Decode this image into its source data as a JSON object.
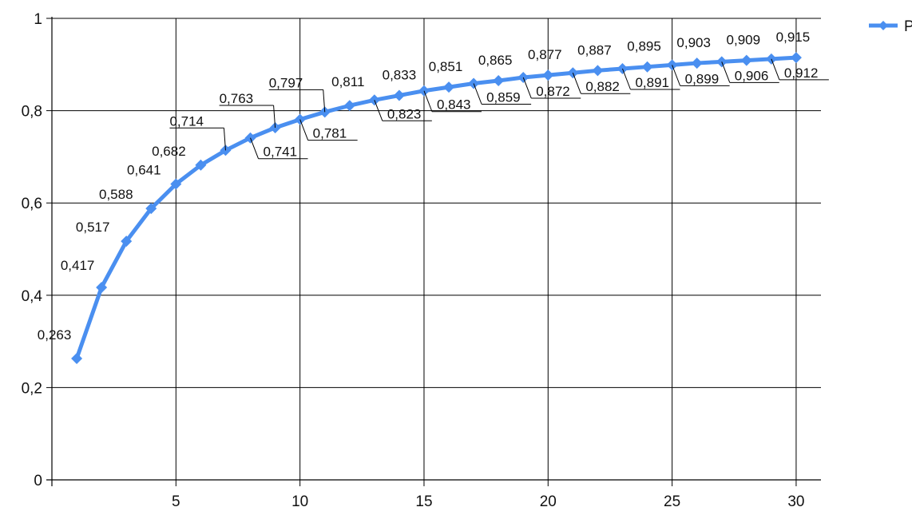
{
  "colors": {
    "series": "#4a8ff0",
    "grid": "#000000",
    "axis": "#000000",
    "label": "#111111"
  },
  "legend": {
    "label": "P",
    "position": "top-right"
  },
  "chart_data": {
    "type": "line",
    "title": "",
    "xlabel": "",
    "ylabel": "",
    "xlim": [
      0,
      31
    ],
    "ylim": [
      0,
      1
    ],
    "x_ticks": [
      5,
      10,
      15,
      20,
      25,
      30
    ],
    "x_tick_labels": [
      "5",
      "10",
      "15",
      "20",
      "25",
      "30"
    ],
    "y_ticks": [
      0,
      0.2,
      0.4,
      0.6,
      0.8,
      1
    ],
    "y_tick_labels": [
      "0",
      "0,2",
      "0,4",
      "0,6",
      "0,8",
      "1"
    ],
    "grid": true,
    "series": [
      {
        "name": "P",
        "marker": "diamond",
        "x": [
          1,
          2,
          3,
          4,
          5,
          6,
          7,
          8,
          9,
          10,
          11,
          12,
          13,
          14,
          15,
          16,
          17,
          18,
          19,
          20,
          21,
          22,
          23,
          24,
          25,
          26,
          27,
          28,
          29,
          30
        ],
        "y": [
          0.263,
          0.417,
          0.517,
          0.588,
          0.641,
          0.682,
          0.714,
          0.741,
          0.763,
          0.781,
          0.797,
          0.811,
          0.823,
          0.833,
          0.843,
          0.851,
          0.859,
          0.865,
          0.872,
          0.877,
          0.882,
          0.887,
          0.891,
          0.895,
          0.899,
          0.903,
          0.906,
          0.909,
          0.912,
          0.915
        ],
        "labels": [
          "0,263",
          "0,417",
          "0,517",
          "0,588",
          "0,641",
          "0,682",
          "0,714",
          "0,741",
          "0,763",
          "0,781",
          "0,797",
          "0,811",
          "0,823",
          "0,833",
          "0,843",
          "0,851",
          "0,859",
          "0,865",
          "0,872",
          "0,877",
          "0,882",
          "0,887",
          "0,891",
          "0,895",
          "0,899",
          "0,903",
          "0,906",
          "0,909",
          "0,912",
          "0,915"
        ]
      }
    ]
  }
}
